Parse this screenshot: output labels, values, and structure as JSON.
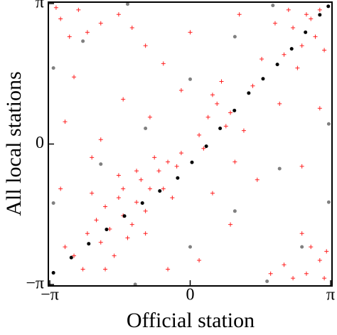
{
  "chart_data": {
    "type": "scatter",
    "x_label": "Official station",
    "y_label": "All local stations",
    "xlim": [
      -3.14159,
      3.14159
    ],
    "ylim": [
      -3.14159,
      3.14159
    ],
    "xticks": [
      {
        "value": -3.14159,
        "label": "−π"
      },
      0,
      {
        "value": 3.14159,
        "label": "π"
      }
    ],
    "yticks": [
      {
        "value": -3.14159,
        "label": "−π"
      },
      0,
      {
        "value": 3.14159,
        "label": "π"
      }
    ],
    "series": [
      {
        "color": "#ff2020",
        "marker": "plus",
        "x": [
          -1.8,
          -1.5,
          -1.2,
          -2.0,
          -1.6,
          -1.3,
          -0.9,
          -0.7,
          -0.5,
          -1.1,
          -2.3,
          -2.6,
          -1.9,
          -1.4,
          -1.0,
          -0.6,
          -0.3,
          -2.1,
          -1.7,
          -2.4,
          -0.8,
          -1.2,
          -1.5,
          -2.8,
          -2.2,
          -1.9,
          -1.0,
          -0.4,
          -1.6,
          -0.2,
          2.3,
          2.6,
          2.8,
          2.1,
          2.5,
          2.9,
          2.2,
          1.9,
          3.0,
          2.4,
          2.7,
          1.6,
          -2.9,
          -2.5,
          -2.0,
          -2.7,
          -1.6,
          -2.3,
          -3.0,
          -1.3,
          2.6,
          2.9,
          2.3,
          3.0,
          2.7,
          2.1,
          2.5,
          3.05,
          0.4,
          0.6,
          0.8,
          0.2,
          0.5,
          0.9,
          0.3,
          0.7,
          -2.8,
          -2.2,
          -1.5,
          -0.6,
          0.0,
          1.2,
          1.5,
          0.9,
          0.2,
          -0.5,
          -2.9,
          -2.6,
          -0.9,
          1.8,
          2.0,
          1.1,
          -1.0,
          0.5,
          -2.0,
          1.4,
          2.9,
          2.5,
          -0.2,
          1.0
        ],
        "values": [
          -1.9,
          -1.6,
          -1.3,
          -2.2,
          -1.2,
          -1.8,
          -1.0,
          -0.6,
          -0.4,
          -0.8,
          -2.0,
          -2.5,
          -1.4,
          -2.1,
          -1.5,
          -1.0,
          -0.5,
          -1.7,
          -2.5,
          -2.8,
          -0.3,
          -0.6,
          -1.0,
          -2.3,
          -1.1,
          -2.8,
          -2.0,
          -1.2,
          -0.7,
          -0.2,
          2.6,
          2.9,
          2.4,
          2.0,
          2.2,
          3.0,
          3.0,
          2.7,
          2.1,
          1.7,
          2.8,
          1.9,
          2.8,
          3.0,
          2.7,
          2.4,
          2.9,
          2.5,
          3.05,
          2.6,
          -2.9,
          -2.6,
          -3.0,
          -3.0,
          -2.3,
          -2.7,
          -2.0,
          -2.4,
          0.6,
          0.9,
          0.4,
          0.2,
          1.1,
          0.7,
          -0.1,
          1.4,
          0.5,
          -0.3,
          1.0,
          1.8,
          2.5,
          0.3,
          -0.8,
          -1.8,
          -2.6,
          -2.8,
          -1.0,
          1.5,
          0.6,
          -2.9,
          0.9,
          2.9,
          2.2,
          -1.1,
          0.1,
          1.3,
          0.8,
          -0.5,
          1.2,
          -0.4
        ]
      },
      {
        "color": "#000000",
        "marker": "dot",
        "x": [
          -3.06,
          -2.66,
          -2.27,
          -1.87,
          -1.47,
          -1.07,
          -0.68,
          -0.28,
          0.04,
          0.36,
          0.67,
          0.99,
          1.31,
          1.63,
          1.95,
          2.27,
          2.58,
          2.9,
          3.09
        ],
        "values": [
          -2.88,
          -2.54,
          -2.23,
          -1.91,
          -1.61,
          -1.32,
          -1.05,
          -0.76,
          -0.41,
          -0.05,
          0.35,
          0.75,
          1.14,
          1.46,
          1.78,
          2.13,
          2.5,
          2.89,
          3.08
        ]
      },
      {
        "color": "#808080",
        "marker": "dot",
        "x": [
          -3.06,
          -2.0,
          -1.0,
          0.0,
          1.0,
          1.85,
          null,
          -3.06,
          -2.4,
          -1.4,
          null,
          -1.23,
          0.0,
          1.0,
          2.0,
          3.1,
          null,
          1.72,
          2.5,
          3.1
        ],
        "values": [
          -1.32,
          -0.45,
          0.35,
          1.45,
          2.4,
          3.1,
          null,
          1.7,
          2.3,
          3.13,
          null,
          -3.14,
          -2.3,
          -1.5,
          -0.55,
          0.45,
          null,
          -3.07,
          -2.3,
          -1.3
        ]
      }
    ]
  }
}
